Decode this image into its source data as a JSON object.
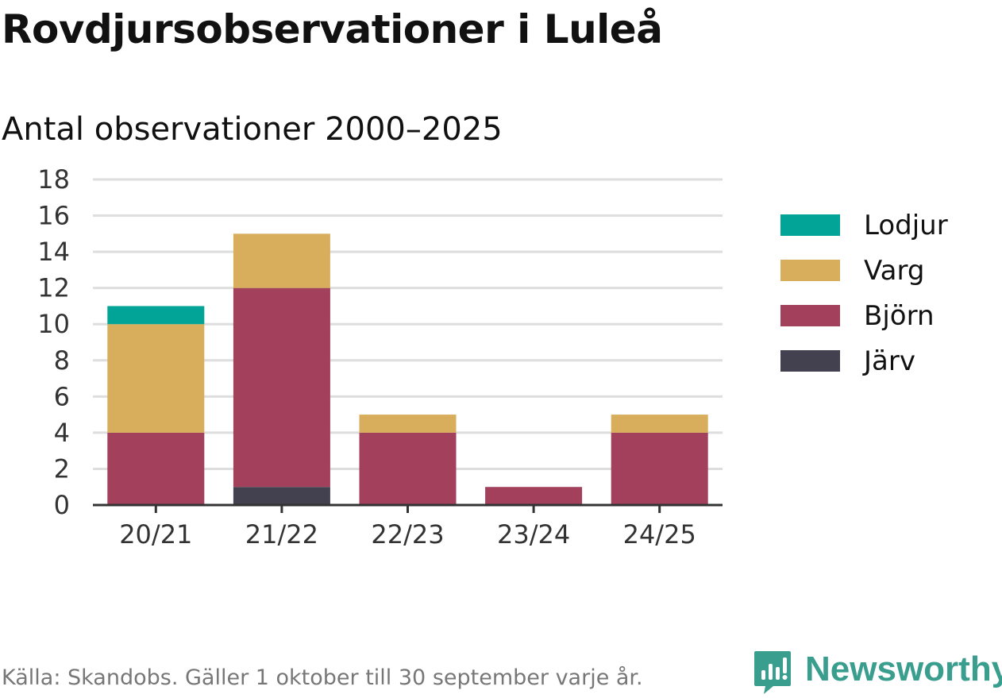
{
  "title": "Rovdjursobservationer i Luleå",
  "subtitle": "Antal observationer 2000–2025",
  "source": "Källa: Skandobs. Gäller 1 oktober till 30 september varje år.",
  "brand": "Newsworthy",
  "brand_color": "#3a9e8f",
  "chart_data": {
    "type": "bar",
    "stacked": true,
    "title": "Antal observationer 2000–2025",
    "xlabel": "",
    "ylabel": "",
    "categories": [
      "20/21",
      "21/22",
      "22/23",
      "23/24",
      "24/25"
    ],
    "ylim": [
      0,
      18
    ],
    "yticks": [
      0,
      2,
      4,
      6,
      8,
      10,
      12,
      14,
      16,
      18
    ],
    "grid": true,
    "legend_position": "right",
    "series": [
      {
        "name": "Järv",
        "color": "#43414f",
        "values": [
          0,
          1,
          0,
          0,
          0
        ]
      },
      {
        "name": "Björn",
        "color": "#a3405c",
        "values": [
          4,
          11,
          4,
          1,
          4
        ]
      },
      {
        "name": "Varg",
        "color": "#d8ae5c",
        "values": [
          6,
          3,
          1,
          0,
          1
        ]
      },
      {
        "name": "Lodjur",
        "color": "#02a497",
        "values": [
          1,
          0,
          0,
          0,
          0
        ]
      }
    ],
    "legend_order": [
      "Lodjur",
      "Varg",
      "Björn",
      "Järv"
    ]
  }
}
